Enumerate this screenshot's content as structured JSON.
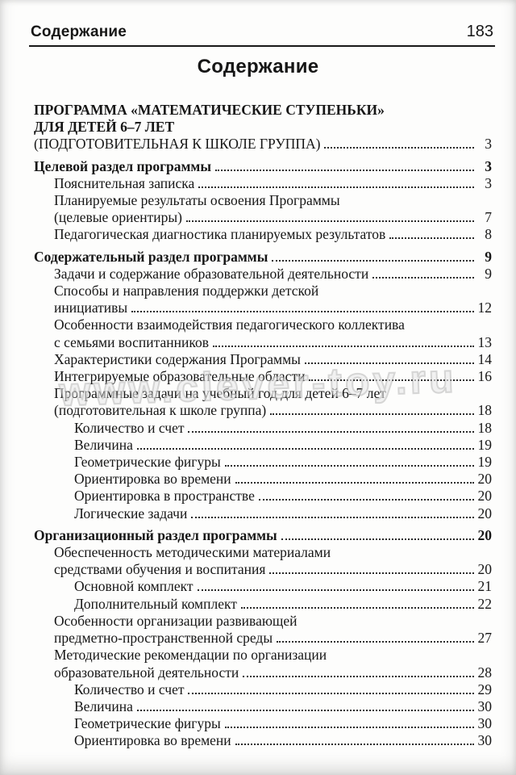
{
  "header": {
    "running_title": "Содержание",
    "page_number": "183"
  },
  "title": "Содержание",
  "watermark_text": "www.clever-toy.ru",
  "toc": {
    "lines": [
      {
        "text": "ПРОГРАММА «МАТЕМАТИЧЕСКИЕ СТУПЕНЬКИ»",
        "level": 0,
        "bold": true,
        "page": ""
      },
      {
        "text": "ДЛЯ ДЕТЕЙ 6–7 ЛЕТ",
        "level": 0,
        "bold": true,
        "page": ""
      },
      {
        "text": "(ПОДГОТОВИТЕЛЬНАЯ К ШКОЛЕ ГРУППА)",
        "level": 0,
        "bold": false,
        "page": "3"
      },
      {
        "text": "Целевой раздел программы",
        "level": 0,
        "bold": true,
        "page": "3",
        "gap": true
      },
      {
        "text": "Пояснительная записка",
        "level": 1,
        "bold": false,
        "page": "3"
      },
      {
        "text": "Планируемые результаты освоения Программы",
        "level": 1,
        "bold": false,
        "page": ""
      },
      {
        "text": "(целевые ориентиры)",
        "level": 1,
        "bold": false,
        "page": "7"
      },
      {
        "text": "Педагогическая диагностика планируемых результатов",
        "level": 1,
        "bold": false,
        "page": "8"
      },
      {
        "text": "Содержательный раздел программы",
        "level": 0,
        "bold": true,
        "page": "9",
        "gap": true
      },
      {
        "text": "Задачи и содержание образовательной деятельности",
        "level": 1,
        "bold": false,
        "page": "9"
      },
      {
        "text": "Способы и направления поддержки детской",
        "level": 1,
        "bold": false,
        "page": ""
      },
      {
        "text": "инициативы",
        "level": 1,
        "bold": false,
        "page": "12"
      },
      {
        "text": "Особенности взаимодействия педагогического коллектива",
        "level": 1,
        "bold": false,
        "page": ""
      },
      {
        "text": "с семьями воспитанников",
        "level": 1,
        "bold": false,
        "page": "13"
      },
      {
        "text": "Характеристики содержания Программы",
        "level": 1,
        "bold": false,
        "page": "14"
      },
      {
        "text": "Интегрируемые образовательные области",
        "level": 1,
        "bold": false,
        "page": "16"
      },
      {
        "text": "Программные задачи на учебный год для детей 6–7 лет",
        "level": 1,
        "bold": false,
        "page": ""
      },
      {
        "text": "(подготовительная к школе группа)",
        "level": 1,
        "bold": false,
        "page": "18"
      },
      {
        "text": "Количество и счет",
        "level": 2,
        "bold": false,
        "page": "18"
      },
      {
        "text": "Величина",
        "level": 2,
        "bold": false,
        "page": "19"
      },
      {
        "text": "Геометрические фигуры",
        "level": 2,
        "bold": false,
        "page": "19"
      },
      {
        "text": "Ориентировка во времени",
        "level": 2,
        "bold": false,
        "page": "20"
      },
      {
        "text": "Ориентировка в пространстве",
        "level": 2,
        "bold": false,
        "page": "20"
      },
      {
        "text": "Логические задачи",
        "level": 2,
        "bold": false,
        "page": "20"
      },
      {
        "text": "Организационный раздел программы",
        "level": 0,
        "bold": true,
        "page": "20",
        "gap": true
      },
      {
        "text": "Обеспеченность методическими материалами",
        "level": 1,
        "bold": false,
        "page": ""
      },
      {
        "text": "средствами обучения и воспитания",
        "level": 1,
        "bold": false,
        "page": "20"
      },
      {
        "text": "Основной комплект",
        "level": 2,
        "bold": false,
        "page": "21"
      },
      {
        "text": "Дополнительный комплект",
        "level": 2,
        "bold": false,
        "page": "22"
      },
      {
        "text": "Особенности организации развивающей",
        "level": 1,
        "bold": false,
        "page": ""
      },
      {
        "text": "предметно-пространственной среды",
        "level": 1,
        "bold": false,
        "page": "27"
      },
      {
        "text": "Методические рекомендации по организации",
        "level": 1,
        "bold": false,
        "page": ""
      },
      {
        "text": "образовательной деятельности",
        "level": 1,
        "bold": false,
        "page": "28"
      },
      {
        "text": "Количество и счет",
        "level": 2,
        "bold": false,
        "page": "29"
      },
      {
        "text": "Величина",
        "level": 2,
        "bold": false,
        "page": "30"
      },
      {
        "text": "Геометрические фигуры",
        "level": 2,
        "bold": false,
        "page": "30"
      },
      {
        "text": "Ориентировка во времени",
        "level": 2,
        "bold": false,
        "page": "30"
      }
    ]
  }
}
